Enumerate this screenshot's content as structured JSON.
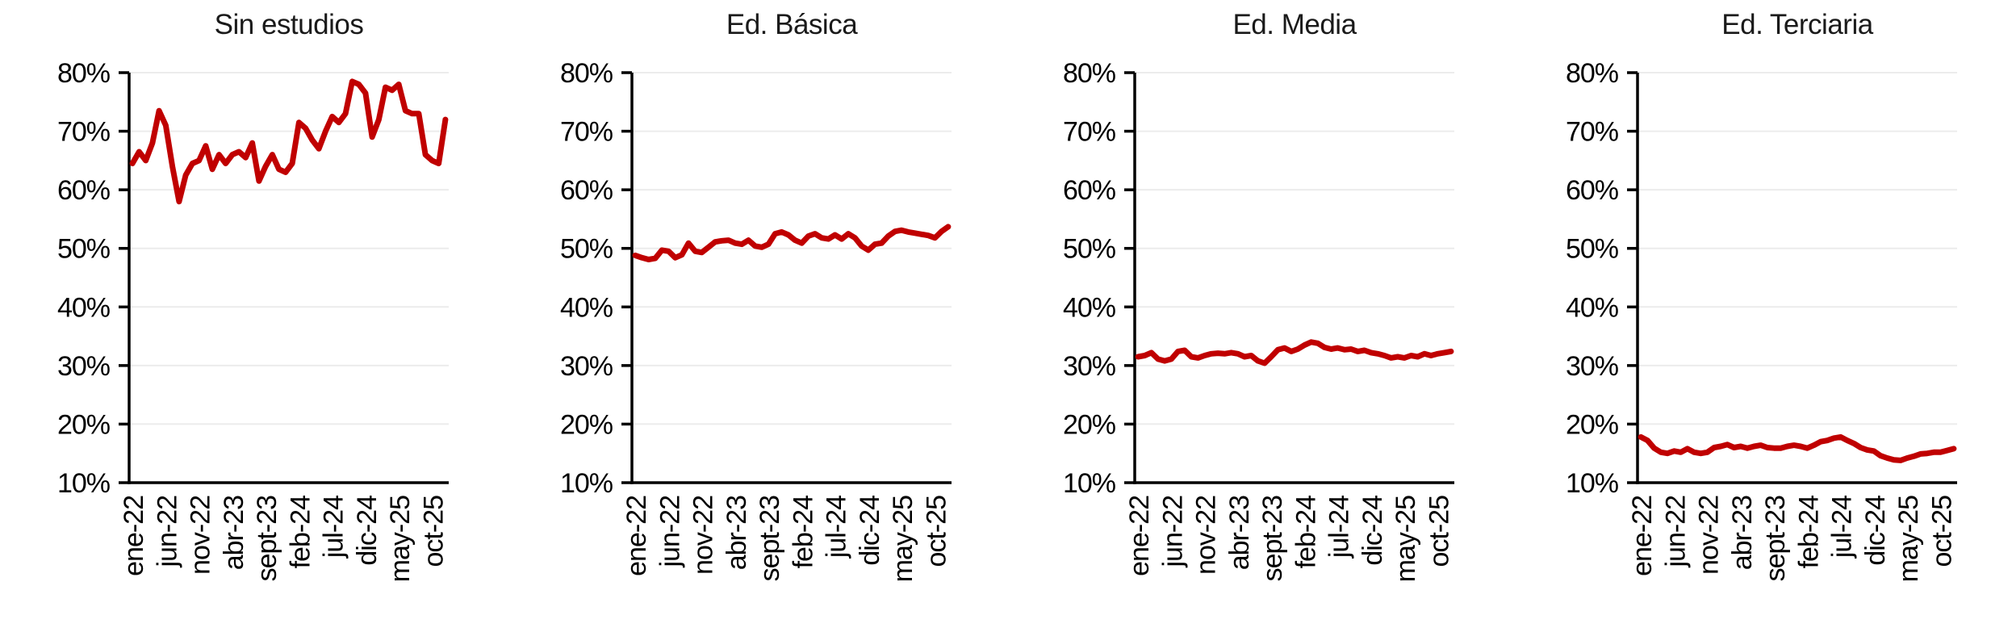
{
  "style": {
    "background": "#FFFFFF",
    "line_color": "#C00000",
    "grid_color": "#ECECEC",
    "axis_color": "#000000",
    "text_color": "#000000"
  },
  "chart_data": [
    {
      "type": "line",
      "title": "Sin estudios",
      "ylim": [
        10,
        80
      ],
      "grid": true,
      "legend": "none",
      "y_ticks": [
        "80%",
        "70%",
        "60%",
        "50%",
        "40%",
        "30%",
        "20%",
        "10%"
      ],
      "x_axis": {
        "n_points": 48,
        "tick_indices": [
          0,
          5,
          10,
          15,
          20,
          25,
          30,
          35,
          40,
          45
        ],
        "tick_labels": [
          "ene-22",
          "jun-22",
          "nov-22",
          "abr-23",
          "sept-23",
          "feb-24",
          "jul-24",
          "dic-24",
          "may-25",
          "oct-25"
        ]
      },
      "series": [
        {
          "name": "Sin estudios",
          "color": "#C00000",
          "values": [
            64.5,
            66.5,
            65.0,
            68.0,
            73.5,
            71.0,
            64.0,
            58.0,
            62.5,
            64.5,
            65.0,
            67.5,
            63.5,
            66.0,
            64.5,
            66.0,
            66.5,
            65.5,
            68.0,
            61.5,
            64.0,
            66.0,
            63.5,
            63.0,
            64.5,
            71.5,
            70.5,
            68.5,
            67.0,
            70.0,
            72.5,
            71.5,
            73.0,
            78.5,
            78.0,
            76.5,
            69.0,
            72.0,
            77.5,
            77.0,
            78.0,
            73.5,
            73.0,
            73.0,
            66.0,
            65.0,
            64.5,
            72.0
          ]
        }
      ]
    },
    {
      "type": "line",
      "title": "Ed. Básica",
      "ylim": [
        10,
        80
      ],
      "grid": true,
      "legend": "none",
      "y_ticks": [
        "80%",
        "70%",
        "60%",
        "50%",
        "40%",
        "30%",
        "20%",
        "10%"
      ],
      "x_axis": {
        "n_points": 48,
        "tick_indices": [
          0,
          5,
          10,
          15,
          20,
          25,
          30,
          35,
          40,
          45
        ],
        "tick_labels": [
          "ene-22",
          "jun-22",
          "nov-22",
          "abr-23",
          "sept-23",
          "feb-24",
          "jul-24",
          "dic-24",
          "may-25",
          "oct-25"
        ]
      },
      "series": [
        {
          "name": "Ed. Básica",
          "color": "#C00000",
          "values": [
            48.8,
            48.4,
            48.1,
            48.3,
            49.7,
            49.5,
            48.4,
            48.9,
            50.9,
            49.5,
            49.3,
            50.2,
            51.1,
            51.3,
            51.4,
            50.9,
            50.7,
            51.4,
            50.4,
            50.2,
            50.7,
            52.5,
            52.8,
            52.3,
            51.4,
            50.9,
            52.1,
            52.5,
            51.8,
            51.6,
            52.3,
            51.6,
            52.5,
            51.8,
            50.4,
            49.7,
            50.7,
            50.9,
            52.1,
            52.9,
            53.1,
            52.8,
            52.6,
            52.4,
            52.2,
            51.8,
            52.9,
            53.7
          ]
        }
      ]
    },
    {
      "type": "line",
      "title": "Ed. Media",
      "ylim": [
        10,
        80
      ],
      "grid": true,
      "legend": "none",
      "y_ticks": [
        "80%",
        "70%",
        "60%",
        "50%",
        "40%",
        "30%",
        "20%",
        "10%"
      ],
      "x_axis": {
        "n_points": 48,
        "tick_indices": [
          0,
          5,
          10,
          15,
          20,
          25,
          30,
          35,
          40,
          45
        ],
        "tick_labels": [
          "ene-22",
          "jun-22",
          "nov-22",
          "abr-23",
          "sept-23",
          "feb-24",
          "jul-24",
          "dic-24",
          "may-25",
          "oct-25"
        ]
      },
      "series": [
        {
          "name": "Ed. Media",
          "color": "#C00000",
          "values": [
            31.5,
            31.7,
            32.2,
            31.1,
            30.8,
            31.1,
            32.4,
            32.6,
            31.5,
            31.3,
            31.7,
            32.0,
            32.1,
            32.0,
            32.2,
            32.0,
            31.5,
            31.7,
            30.8,
            30.4,
            31.5,
            32.7,
            33.0,
            32.4,
            32.8,
            33.5,
            34.0,
            33.8,
            33.1,
            32.8,
            33.0,
            32.7,
            32.8,
            32.4,
            32.6,
            32.2,
            32.0,
            31.7,
            31.3,
            31.5,
            31.3,
            31.7,
            31.5,
            32.0,
            31.7,
            32.0,
            32.2,
            32.4
          ]
        }
      ]
    },
    {
      "type": "line",
      "title": "Ed. Terciaria",
      "ylim": [
        10,
        80
      ],
      "grid": true,
      "legend": "none",
      "y_ticks": [
        "80%",
        "70%",
        "60%",
        "50%",
        "40%",
        "30%",
        "20%",
        "10%"
      ],
      "x_axis": {
        "n_points": 48,
        "tick_indices": [
          0,
          5,
          10,
          15,
          20,
          25,
          30,
          35,
          40,
          45
        ],
        "tick_labels": [
          "ene-22",
          "jun-22",
          "nov-22",
          "abr-23",
          "sept-23",
          "feb-24",
          "jul-24",
          "dic-24",
          "may-25",
          "oct-25"
        ]
      },
      "series": [
        {
          "name": "Ed. Terciaria",
          "color": "#C00000",
          "values": [
            17.8,
            17.2,
            15.9,
            15.2,
            15.0,
            15.4,
            15.2,
            15.8,
            15.2,
            15.0,
            15.2,
            16.0,
            16.2,
            16.5,
            16.0,
            16.2,
            15.9,
            16.2,
            16.4,
            16.0,
            15.9,
            15.9,
            16.2,
            16.4,
            16.2,
            15.9,
            16.4,
            17.0,
            17.2,
            17.6,
            17.8,
            17.2,
            16.7,
            16.0,
            15.6,
            15.4,
            14.6,
            14.2,
            13.9,
            13.8,
            14.2,
            14.5,
            14.9,
            15.0,
            15.2,
            15.2,
            15.5,
            15.8
          ]
        }
      ]
    }
  ]
}
